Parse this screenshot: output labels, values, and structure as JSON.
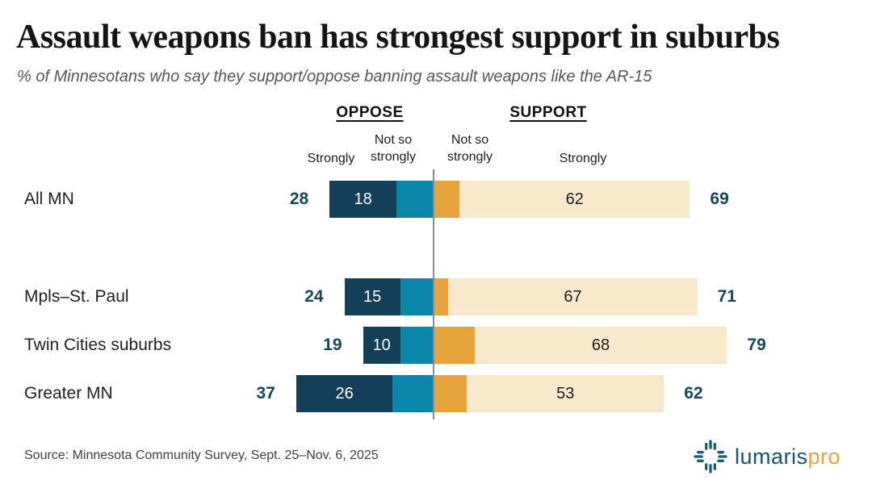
{
  "title": "Assault weapons ban has strongest support in suburbs",
  "subtitle": "% of Minnesotans who say they support/oppose banning assault weapons like the AR-15",
  "legend": {
    "oppose_header": "OPPOSE",
    "support_header": "SUPPORT",
    "oppose_strong": "Strongly",
    "oppose_soft": "Not so strongly",
    "support_soft": "Not so strongly",
    "support_strong": "Strongly"
  },
  "chart_data": {
    "type": "bar",
    "variant": "diverging-stacked-horizontal",
    "title": "Assault weapons ban has strongest support in suburbs",
    "subtitle": "% of Minnesotans who say they support/oppose banning assault weapons like the AR-15",
    "categories": [
      "All MN",
      "Mpls–St. Paul",
      "Twin Cities suburbs",
      "Greater MN"
    ],
    "series": [
      {
        "name": "Strongly oppose",
        "color": "#133f58",
        "values": [
          18,
          15,
          10,
          26
        ]
      },
      {
        "name": "Not so strongly oppose",
        "color": "#0b85aa",
        "values": [
          10,
          9,
          9,
          11
        ]
      },
      {
        "name": "Not so strongly support",
        "color": "#e7a33c",
        "values": [
          7,
          4,
          11,
          9
        ]
      },
      {
        "name": "Strongly support",
        "color": "#f8e9cc",
        "values": [
          62,
          67,
          68,
          53
        ]
      }
    ],
    "totals": {
      "oppose": [
        28,
        24,
        19,
        37
      ],
      "support": [
        69,
        71,
        79,
        62
      ]
    },
    "shown_value_labels": {
      "inside_dark_bar": "Strongly oppose value",
      "inside_cream_bar": "Strongly support value",
      "left_of_bar": "Total oppose",
      "right_of_bar": "Total support"
    },
    "legend_position": "top",
    "grid": false,
    "colors": {
      "strongly_oppose": "#133f58",
      "not_so_strongly_oppose": "#0b85aa",
      "not_so_strongly_support": "#e7a33c",
      "strongly_support": "#f8e9cc",
      "axis_line": "#8a8a8a",
      "total_label": "#17465f",
      "value_on_dark": "#ffffff",
      "value_on_cream": "#1d1d1d"
    }
  },
  "source": "Source: Minnesota Community Survey, Sept. 25–Nov. 6, 2025",
  "logo": {
    "name": "lumaris",
    "suffix": "pro",
    "icon": "lumaris-compass-icon",
    "brand_teal": "#15566e",
    "brand_orange": "#eaa43c"
  }
}
